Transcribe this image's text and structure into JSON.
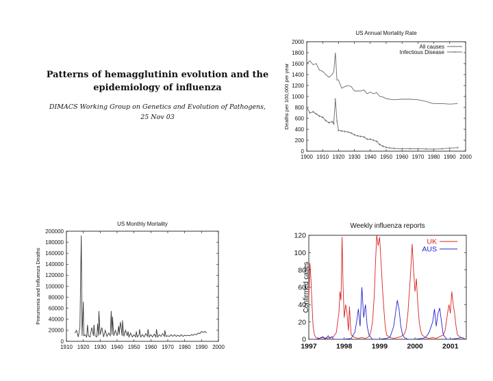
{
  "title": {
    "line1": "Patterns of hemagglutinin evolution and the",
    "line2": "epidemiology of influenza",
    "sub1": "DIMACS Working Group on Genetics and Evolution of Pathogens,",
    "sub2": "25 Nov 03"
  },
  "chart_data": [
    {
      "type": "line",
      "title": "US Annual Mortality Rate",
      "xlabel": "",
      "ylabel": "Deaths per 100,000 per year",
      "xlim": [
        1900,
        2000
      ],
      "ylim": [
        0,
        2000
      ],
      "xticks": [
        "1900",
        "1910",
        "1920",
        "1930",
        "1940",
        "1950",
        "1960",
        "1970",
        "1980",
        "1990",
        "2000"
      ],
      "yticks": [
        "0",
        "200",
        "400",
        "600",
        "800",
        "1000",
        "1200",
        "1400",
        "1600",
        "1800",
        "2000"
      ],
      "legend": "top-right",
      "series": [
        {
          "name": "All causes",
          "color": "#666666",
          "x": [
            1900,
            1902,
            1904,
            1906,
            1908,
            1910,
            1912,
            1914,
            1916,
            1917,
            1918,
            1919,
            1920,
            1922,
            1924,
            1926,
            1928,
            1930,
            1932,
            1934,
            1936,
            1938,
            1940,
            1942,
            1944,
            1946,
            1948,
            1950,
            1952,
            1955,
            1960,
            1965,
            1970,
            1975,
            1978,
            1980,
            1985,
            1990,
            1995
          ],
          "y": [
            1600,
            1650,
            1580,
            1600,
            1480,
            1460,
            1400,
            1350,
            1400,
            1450,
            1800,
            1300,
            1300,
            1150,
            1180,
            1200,
            1180,
            1100,
            1100,
            1100,
            1120,
            1050,
            1080,
            1050,
            1070,
            1000,
            990,
            960,
            950,
            940,
            950,
            950,
            940,
            910,
            880,
            870,
            870,
            860,
            870
          ]
        },
        {
          "name": "Infectious Disease",
          "color": "#666666",
          "marker": "+",
          "x": [
            1900,
            1902,
            1904,
            1906,
            1908,
            1910,
            1912,
            1914,
            1916,
            1917,
            1918,
            1919,
            1920,
            1922,
            1924,
            1926,
            1928,
            1930,
            1932,
            1934,
            1936,
            1938,
            1940,
            1942,
            1944,
            1946,
            1948,
            1950,
            1952,
            1955,
            1960,
            1965,
            1970,
            1975,
            1980,
            1985,
            1990,
            1995
          ],
          "y": [
            800,
            700,
            720,
            680,
            640,
            620,
            560,
            520,
            540,
            500,
            950,
            550,
            380,
            370,
            360,
            350,
            330,
            300,
            280,
            270,
            260,
            220,
            220,
            200,
            180,
            120,
            90,
            70,
            60,
            50,
            45,
            45,
            45,
            40,
            38,
            42,
            55,
            65
          ]
        }
      ]
    },
    {
      "type": "line",
      "title": "US Monthly Mortality",
      "xlabel": "",
      "ylabel": "Pneumonia and Influenza Deaths",
      "xlim": [
        1910,
        2000
      ],
      "ylim": [
        0,
        200000
      ],
      "xticks": [
        "1910",
        "1920",
        "1930",
        "1940",
        "1950",
        "1960",
        "1970",
        "1980",
        "1990",
        "2000"
      ],
      "yticks": [
        "0",
        "20000",
        "40000",
        "60000",
        "80000",
        "100000",
        "120000",
        "140000",
        "160000",
        "180000",
        "200000"
      ],
      "series": [
        {
          "name": "",
          "color": "#333333",
          "x": [
            1915,
            1916,
            1917,
            1918,
            1918.8,
            1919.3,
            1920,
            1920.3,
            1921,
            1922,
            1922.5,
            1923,
            1924,
            1925,
            1926,
            1926.3,
            1927,
            1928,
            1928.5,
            1929,
            1929.2,
            1930,
            1931,
            1932,
            1933,
            1934,
            1935,
            1936,
            1936.5,
            1937,
            1937.3,
            1938,
            1939,
            1940,
            1941,
            1941.2,
            1942,
            1943,
            1943.2,
            1944,
            1945,
            1946,
            1946.5,
            1947,
            1948,
            1949,
            1950,
            1951,
            1951.4,
            1952,
            1953,
            1953.3,
            1954,
            1955,
            1956,
            1957,
            1958,
            1958.3,
            1959,
            1960,
            1961,
            1962,
            1963,
            1963.3,
            1964,
            1965,
            1966,
            1967,
            1968,
            1968.3,
            1969,
            1970,
            1971,
            1972,
            1973,
            1974,
            1975,
            1976,
            1977,
            1978,
            1979,
            1980,
            1981,
            1982,
            1983,
            1984,
            1985,
            1986,
            1987,
            1988,
            1989,
            1990,
            1991,
            1992,
            1993
          ],
          "y": [
            15000,
            20000,
            8000,
            25000,
            192000,
            10000,
            72000,
            10000,
            12000,
            8000,
            30000,
            10000,
            8000,
            25000,
            10000,
            30000,
            10000,
            8000,
            32000,
            10000,
            55000,
            12000,
            25000,
            8000,
            20000,
            9000,
            15000,
            10000,
            55000,
            12000,
            45000,
            10000,
            20000,
            10000,
            28000,
            12000,
            35000,
            10000,
            38000,
            9000,
            20000,
            10000,
            18000,
            8000,
            15000,
            8000,
            12000,
            8000,
            18000,
            8000,
            12000,
            22000,
            8000,
            12000,
            8000,
            14000,
            9000,
            22000,
            8000,
            12000,
            8000,
            13000,
            8000,
            22000,
            8000,
            12000,
            9000,
            14000,
            9000,
            20000,
            9000,
            10000,
            9000,
            12000,
            9000,
            12000,
            9000,
            11000,
            9000,
            12000,
            9000,
            11000,
            10000,
            11000,
            10000,
            12000,
            11000,
            13000,
            12000,
            15000,
            14000,
            18000,
            16000,
            18000,
            15000
          ]
        }
      ]
    },
    {
      "type": "line",
      "title": "Weekly influenza reports",
      "xlabel": "",
      "ylabel": "Confirmed cases",
      "xlim": [
        1997,
        2001.45
      ],
      "ylim": [
        0,
        120
      ],
      "xticks": [
        "1997",
        "1998",
        "1999",
        "2000",
        "2001"
      ],
      "yticks": [
        "0",
        "20",
        "40",
        "60",
        "80",
        "100",
        "120"
      ],
      "legend": "top-right",
      "series": [
        {
          "name": "UK",
          "color": "#d82020",
          "x": [
            1997,
            1997.03,
            1997.06,
            1997.09,
            1997.12,
            1997.16,
            1997.2,
            1997.3,
            1997.4,
            1997.5,
            1997.6,
            1997.7,
            1997.78,
            1997.8,
            1997.85,
            1997.88,
            1997.91,
            1997.94,
            1997.97,
            1998,
            1998.04,
            1998.08,
            1998.12,
            1998.15,
            1998.18,
            1998.2,
            1998.3,
            1998.4,
            1998.5,
            1998.6,
            1998.7,
            1998.75,
            1998.8,
            1998.85,
            1998.88,
            1998.92,
            1998.96,
            1999,
            1999.04,
            1999.08,
            1999.12,
            1999.16,
            1999.2,
            1999.3,
            1999.4,
            1999.5,
            1999.6,
            1999.7,
            1999.75,
            1999.8,
            1999.85,
            1999.88,
            1999.92,
            1999.96,
            2000,
            2000.04,
            2000.08,
            2000.12,
            2000.16,
            2000.2,
            2000.3,
            2000.4,
            2000.5,
            2000.6,
            2000.7,
            2000.8,
            2000.85,
            2000.88,
            2000.92,
            2000.96,
            2001,
            2001.04,
            2001.08,
            2001.12,
            2001.16,
            2001.2,
            2001.3,
            2001.4
          ],
          "y": [
            45,
            88,
            70,
            40,
            15,
            5,
            2,
            1,
            2,
            1,
            2,
            3,
            8,
            15,
            30,
            55,
            45,
            118,
            60,
            25,
            40,
            30,
            10,
            38,
            15,
            5,
            2,
            1,
            2,
            1,
            3,
            8,
            20,
            50,
            85,
            120,
            108,
            118,
            90,
            60,
            35,
            15,
            5,
            2,
            1,
            2,
            3,
            6,
            12,
            30,
            60,
            80,
            110,
            80,
            55,
            70,
            40,
            20,
            10,
            5,
            2,
            1,
            2,
            1,
            3,
            5,
            10,
            18,
            30,
            40,
            30,
            55,
            40,
            30,
            15,
            5,
            2,
            1
          ]
        },
        {
          "name": "AUS",
          "color": "#2020d0",
          "x": [
            1997,
            1997.2,
            1997.3,
            1997.4,
            1997.45,
            1997.5,
            1997.55,
            1997.6,
            1997.65,
            1997.7,
            1997.8,
            1998,
            1998.2,
            1998.3,
            1998.35,
            1998.4,
            1998.45,
            1998.5,
            1998.55,
            1998.6,
            1998.65,
            1998.7,
            1998.8,
            1999,
            1999.2,
            1999.3,
            1999.4,
            1999.45,
            1999.5,
            1999.55,
            1999.6,
            1999.65,
            1999.7,
            1999.8,
            2000,
            2000.2,
            2000.3,
            2000.4,
            2000.5,
            2000.55,
            2000.6,
            2000.65,
            2000.7,
            2000.75,
            2000.8,
            2000.9,
            2001,
            2001.2,
            2001.3,
            2001.4
          ],
          "y": [
            0,
            0,
            1,
            3,
            0,
            2,
            4,
            1,
            3,
            0,
            0,
            0,
            1,
            8,
            20,
            35,
            15,
            60,
            25,
            40,
            15,
            5,
            0,
            0,
            1,
            3,
            15,
            30,
            45,
            35,
            15,
            5,
            2,
            0,
            0,
            1,
            2,
            8,
            20,
            35,
            15,
            30,
            36,
            20,
            5,
            0,
            0,
            1,
            2,
            1
          ]
        }
      ]
    }
  ]
}
